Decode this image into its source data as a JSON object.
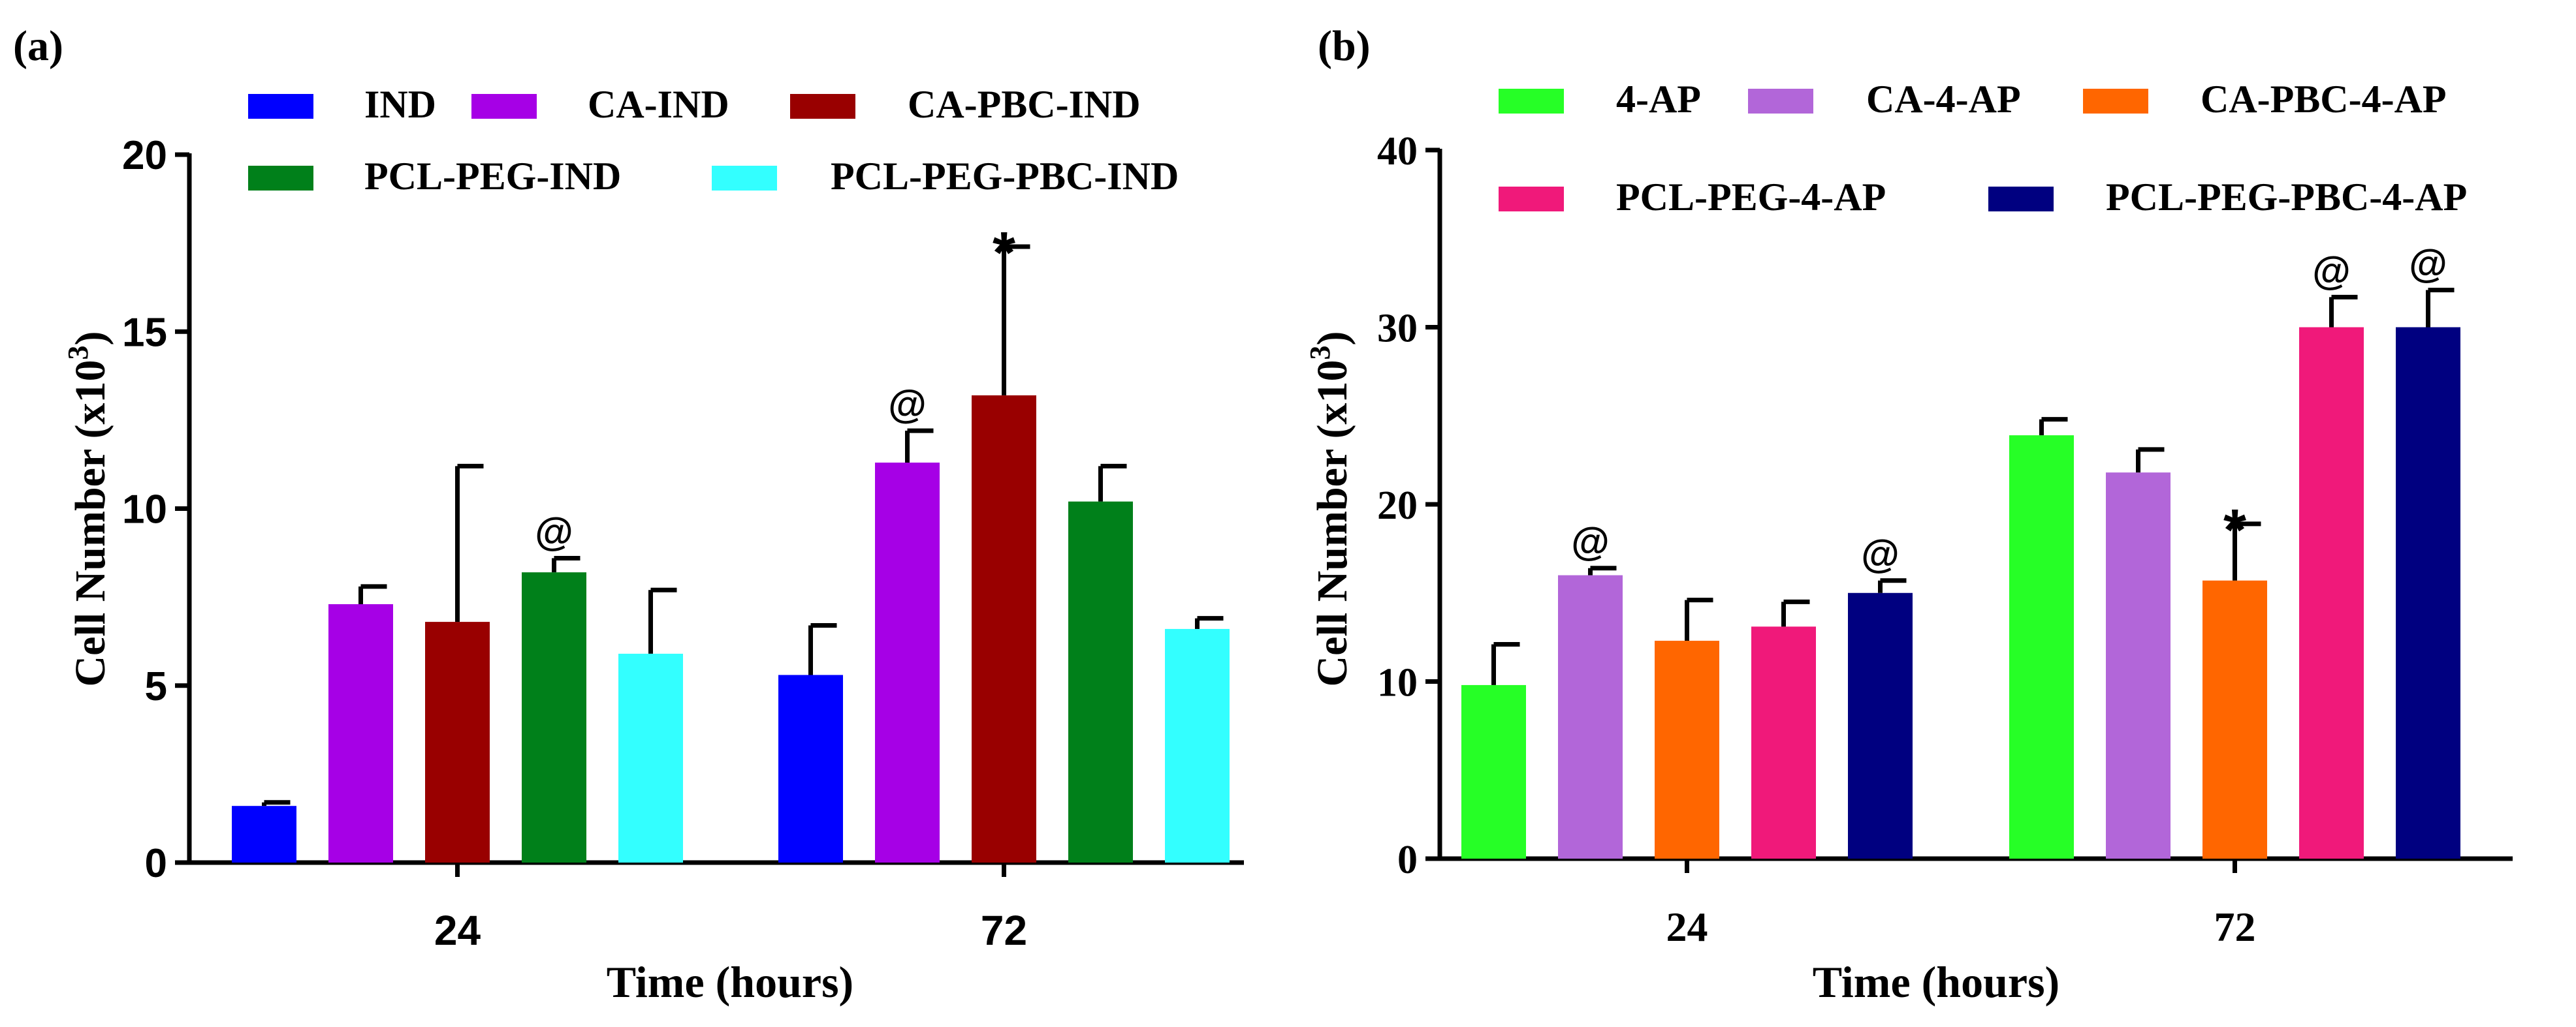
{
  "chart_data": [
    {
      "type": "bar",
      "panel_label": "(a)",
      "categories": [
        "24",
        "72"
      ],
      "xlabel": "Time (hours)",
      "ylabel_main": "Cell Number (x10",
      "ylabel_sup": "3",
      "ylabel_close": ")",
      "ylim": [
        0,
        20
      ],
      "yticks": [
        "0",
        "5",
        "10",
        "15",
        "20"
      ],
      "legend_rows": [
        [
          0,
          1,
          2
        ],
        [
          3,
          4
        ]
      ],
      "series": [
        {
          "name": "IND",
          "color": "#0000ff",
          "values": [
            1.6,
            5.3
          ],
          "errors": [
            0.1,
            1.4
          ],
          "marks": [
            "",
            ""
          ]
        },
        {
          "name": "CA-IND",
          "color": "#a600e6",
          "values": [
            7.3,
            11.3
          ],
          "errors": [
            0.5,
            0.9
          ],
          "marks": [
            "",
            "@"
          ]
        },
        {
          "name": "CA-PBC-IND",
          "color": "#990000",
          "values": [
            6.8,
            13.2
          ],
          "errors": [
            4.4,
            4.2
          ],
          "marks": [
            "",
            "*"
          ]
        },
        {
          "name": "PCL-PEG-IND",
          "color": "#00801a",
          "values": [
            8.2,
            10.2
          ],
          "errors": [
            0.4,
            1.0
          ],
          "marks": [
            "@",
            ""
          ]
        },
        {
          "name": "PCL-PEG-PBC-IND",
          "color": "#33ffff",
          "values": [
            5.9,
            6.6
          ],
          "errors": [
            1.8,
            0.3
          ],
          "marks": [
            "",
            ""
          ]
        }
      ]
    },
    {
      "type": "bar",
      "panel_label": "(b)",
      "categories": [
        "24",
        "72"
      ],
      "xlabel": "Time (hours)",
      "ylabel_main": "Cell Number (x10",
      "ylabel_sup": "3",
      "ylabel_close": ")",
      "ylim": [
        0,
        40
      ],
      "yticks": [
        "0",
        "10",
        "20",
        "30",
        "40"
      ],
      "legend_rows": [
        [
          0,
          1,
          2
        ],
        [
          3,
          4
        ]
      ],
      "series": [
        {
          "name": "4-AP",
          "color": "#26ff26",
          "values": [
            9.8,
            23.9
          ],
          "errors": [
            2.3,
            0.9
          ],
          "marks": [
            "",
            ""
          ]
        },
        {
          "name": "CA-4-AP",
          "color": "#b266d9",
          "values": [
            16.0,
            21.8
          ],
          "errors": [
            0.4,
            1.3
          ],
          "marks": [
            "@",
            ""
          ]
        },
        {
          "name": "CA-PBC-4-AP",
          "color": "#ff6600",
          "values": [
            12.3,
            15.7
          ],
          "errors": [
            2.3,
            3.2
          ],
          "marks": [
            "",
            "*"
          ]
        },
        {
          "name": "PCL-PEG-4-AP",
          "color": "#f0197a",
          "values": [
            13.1,
            30.0
          ],
          "errors": [
            1.4,
            1.7
          ],
          "marks": [
            "",
            "@"
          ]
        },
        {
          "name": "PCL-PEG-PBC-4-AP",
          "color": "#000080",
          "values": [
            15.0,
            30.0
          ],
          "errors": [
            0.7,
            2.1
          ],
          "marks": [
            "@",
            "@"
          ]
        }
      ]
    }
  ]
}
